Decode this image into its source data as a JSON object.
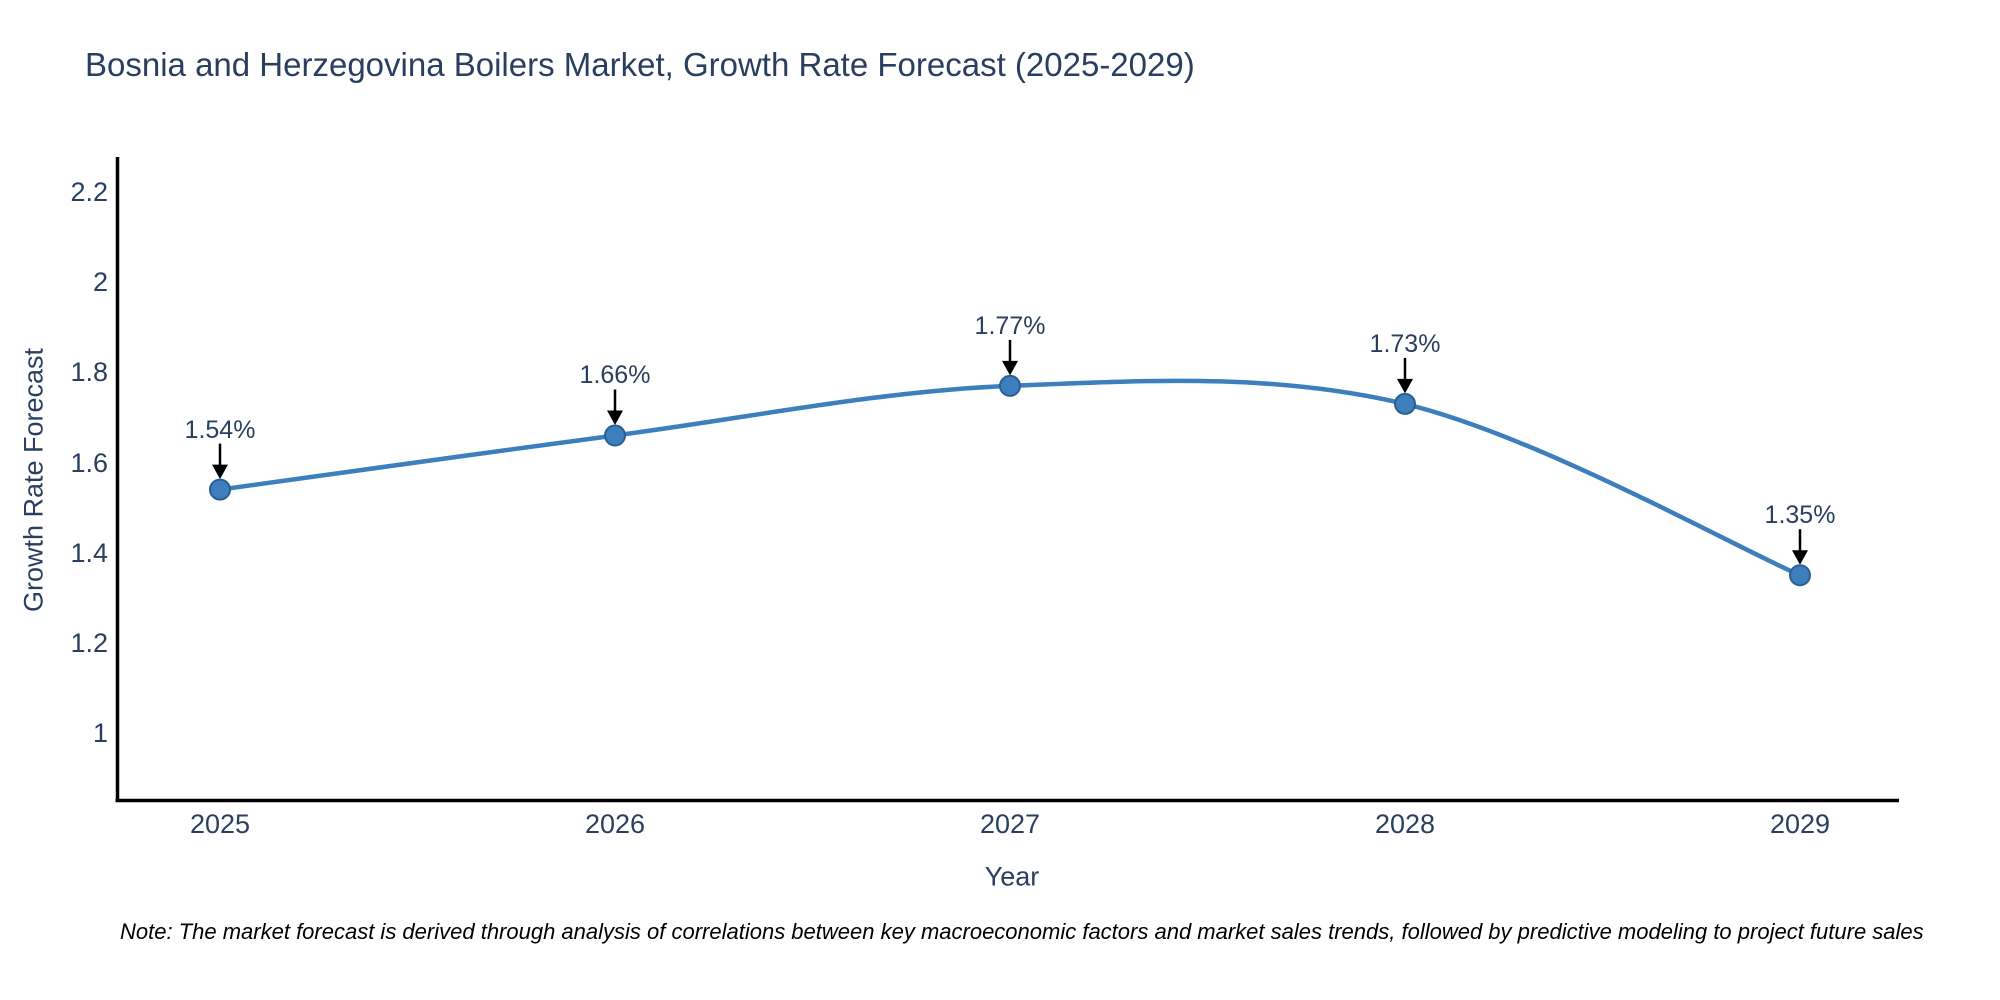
{
  "title": "Bosnia and Herzegovina Boilers Market, Growth Rate Forecast (2025-2029)",
  "note": "Note: The market forecast is derived through analysis of correlations between key macroeconomic factors and market sales trends, followed by predictive modeling to project future sales",
  "chart_data": {
    "type": "line",
    "title": "Bosnia and Herzegovina Boilers Market, Growth Rate Forecast (2025-2029)",
    "x": [
      2025,
      2026,
      2027,
      2028,
      2029
    ],
    "series": [
      {
        "name": "Growth Rate Forecast",
        "values": [
          1.54,
          1.66,
          1.77,
          1.73,
          1.35
        ]
      }
    ],
    "point_labels": [
      "1.54%",
      "1.66%",
      "1.77%",
      "1.73%",
      "1.35%"
    ],
    "xlabel": "Year",
    "ylabel": "Growth Rate Forecast",
    "xtick_labels": [
      "2025",
      "2026",
      "2027",
      "2028",
      "2029"
    ],
    "ytick_values": [
      1,
      1.2,
      1.4,
      1.6,
      1.8,
      2,
      2.2
    ],
    "ytick_labels": [
      "1",
      "1.2",
      "1.4",
      "1.6",
      "1.8",
      "2",
      "2.2"
    ],
    "ylim": [
      0.85,
      2.3
    ],
    "grid": false,
    "legend": "none",
    "line_shape": "spline",
    "annotations_have_arrows": true,
    "colors": {
      "line": "#3d7ebd",
      "marker_fill": "#3d7ebd",
      "marker_edge": "#2a5f93",
      "axis_line": "#000000",
      "tick_text": "#2a3f5f",
      "title_text": "#2a3f5f",
      "annotation_text": "#2a3f5f",
      "annotation_arrow": "#000000",
      "note_text": "#000000",
      "background": "#ffffff"
    }
  }
}
